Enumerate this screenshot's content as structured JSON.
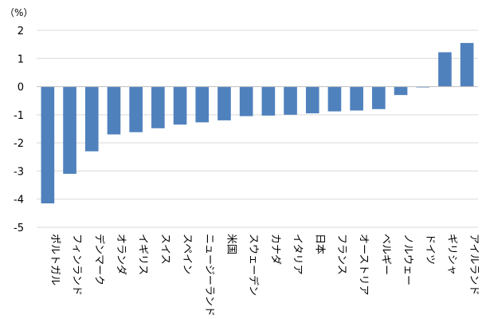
{
  "chart_data": {
    "type": "bar",
    "unit_label": "（%）",
    "categories": [
      "ポルトガル",
      "フィンランド",
      "デンマーク",
      "オランダ",
      "イギリス",
      "スイス",
      "スペイン",
      "ニュージーランド",
      "米国",
      "スウェーデン",
      "カナダ",
      "イタリア",
      "日本",
      "フランス",
      "オーストリア",
      "ベルギー",
      "ノルウェー",
      "ドイツ",
      "ギリシャ",
      "アイルランド"
    ],
    "values": [
      -4.15,
      -3.1,
      -2.3,
      -1.7,
      -1.62,
      -1.48,
      -1.35,
      -1.27,
      -1.2,
      -1.05,
      -1.03,
      -1.0,
      -0.95,
      -0.88,
      -0.85,
      -0.8,
      -0.3,
      -0.03,
      1.22,
      1.55
    ],
    "ylim": [
      -5,
      2
    ],
    "yticks": [
      2,
      1,
      0,
      -1,
      -2,
      -3,
      -4,
      -5
    ],
    "grid": true,
    "bar_color": "#4f81bd",
    "grid_color": "#d9d9d9",
    "axis_color": "#bfbfbf"
  }
}
